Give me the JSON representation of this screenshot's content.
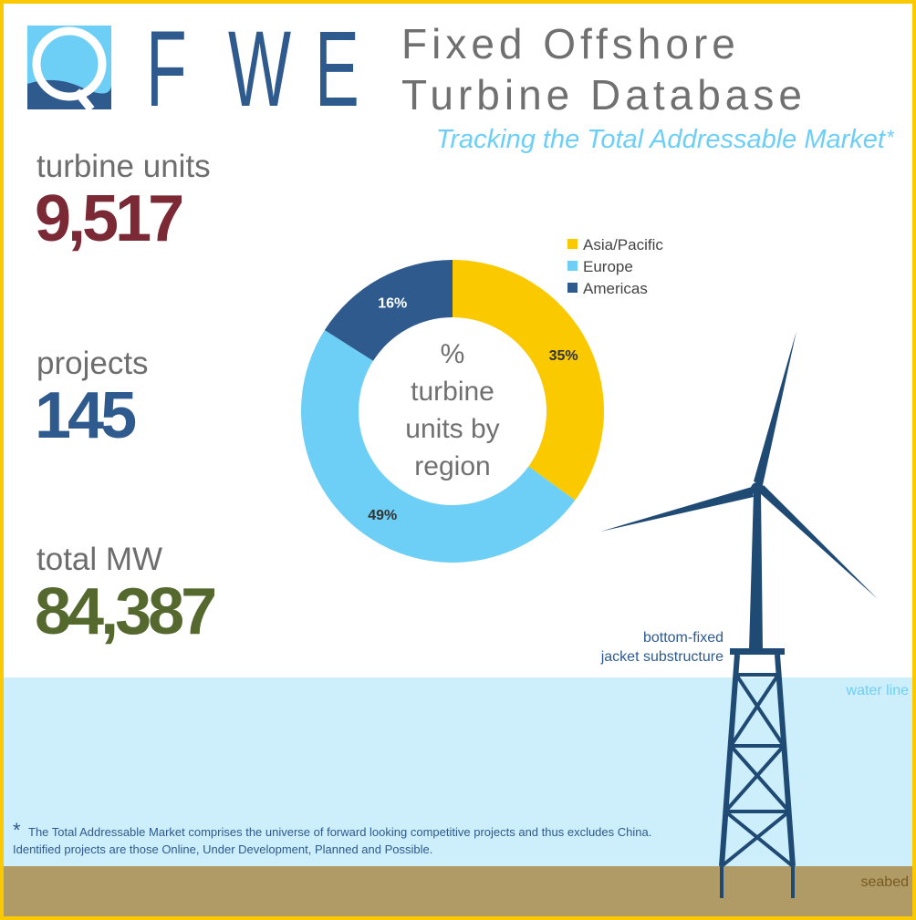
{
  "logo": {
    "letters": [
      "F",
      "W",
      "E"
    ]
  },
  "header": {
    "title": [
      "Fixed Offshore",
      "Turbine Database"
    ],
    "subtitle": "Tracking the Total Addressable Market",
    "subtitle_mark": "*"
  },
  "stats": [
    {
      "label": "turbine units",
      "value": "9,517",
      "color": "#7b2a35"
    },
    {
      "label": "projects",
      "value": "145",
      "color": "#2e5a8e"
    },
    {
      "label": "total MW",
      "value": "84,387",
      "color": "#55692e"
    }
  ],
  "chart_data": {
    "type": "pie",
    "donut": true,
    "categories": [
      "Asia/Pacific",
      "Europe",
      "Americas"
    ],
    "values": [
      35,
      49,
      16
    ],
    "value_labels": [
      "35%",
      "49%",
      "16%"
    ],
    "colors": [
      "#fbc900",
      "#6dcff6",
      "#2e5a8e"
    ],
    "center_label": [
      "%",
      "turbine",
      "units by",
      "region"
    ]
  },
  "diagram": {
    "substructure": [
      "bottom-fixed",
      "jacket substructure"
    ],
    "water": "water line",
    "seabed": "seabed"
  },
  "footnote": {
    "mark": "*",
    "lines": [
      "The Total Addressable Market comprises the universe of forward looking competitive projects and thus excludes China.",
      "Identified projects are those Online, Under Development, Planned and Possible."
    ]
  }
}
